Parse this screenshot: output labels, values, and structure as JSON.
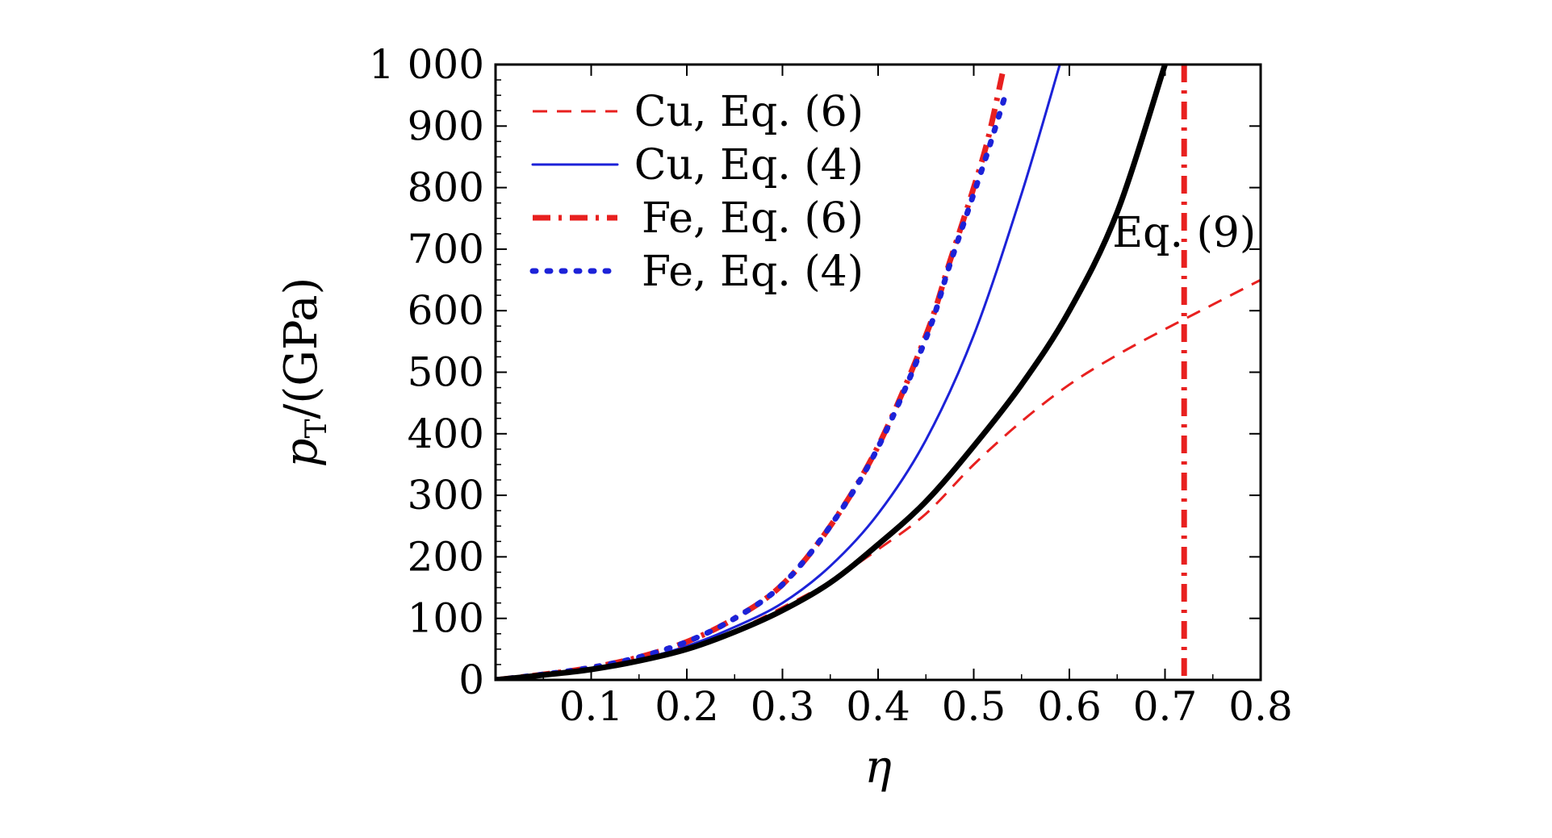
{
  "chart_data": {
    "type": "line",
    "xlabel": "η",
    "ylabel": "pT/(GPa)",
    "ylabel_parts": {
      "symbol": "p",
      "subscript": "T",
      "rest": "/(GPa)"
    },
    "xlim": [
      0,
      0.8
    ],
    "ylim": [
      0,
      1000
    ],
    "x_ticks": [
      0.1,
      0.2,
      0.3,
      0.4,
      0.5,
      0.6,
      0.7,
      0.8
    ],
    "x_tick_labels": [
      "0.1",
      "0.2",
      "0.3",
      "0.4",
      "0.5",
      "0.6",
      "0.7",
      "0.8"
    ],
    "y_ticks": [
      0,
      100,
      200,
      300,
      400,
      500,
      600,
      700,
      800,
      900,
      1000
    ],
    "y_tick_labels": [
      "0",
      "100",
      "200",
      "300",
      "400",
      "500",
      "600",
      "700",
      "800",
      "900",
      "1 000"
    ],
    "grid": false,
    "legend_position": "top-left",
    "series": [
      {
        "name": "Cu, Eq. (6)",
        "color": "#e8201f",
        "style": "dashed",
        "x": [
          0,
          0.05,
          0.1,
          0.15,
          0.2,
          0.25,
          0.3,
          0.35,
          0.4,
          0.45,
          0.5,
          0.55,
          0.6,
          0.65,
          0.7,
          0.75,
          0.8
        ],
        "y": [
          0,
          8,
          18,
          32,
          52,
          80,
          118,
          160,
          212,
          270,
          350,
          420,
          480,
          528,
          570,
          610,
          650
        ]
      },
      {
        "name": "Cu, Eq. (4)",
        "color": "#1c22d8",
        "style": "solid",
        "x": [
          0,
          0.05,
          0.1,
          0.15,
          0.2,
          0.25,
          0.3,
          0.35,
          0.4,
          0.45,
          0.5,
          0.55,
          0.59
        ],
        "y": [
          0,
          8,
          18,
          33,
          55,
          86,
          125,
          185,
          270,
          390,
          560,
          790,
          1000
        ]
      },
      {
        "name": "Fe, Eq. (6)",
        "color": "#e8201f",
        "style": "dashdot",
        "x": [
          0,
          0.05,
          0.1,
          0.15,
          0.2,
          0.25,
          0.3,
          0.35,
          0.4,
          0.45,
          0.475,
          0.5,
          0.515,
          0.53
        ],
        "y": [
          0,
          9,
          20,
          37,
          62,
          100,
          155,
          250,
          380,
          560,
          680,
          800,
          880,
          985
        ]
      },
      {
        "name": "Fe, Eq. (4)",
        "color": "#1c22d8",
        "style": "dotted",
        "x": [
          0,
          0.05,
          0.1,
          0.15,
          0.2,
          0.25,
          0.3,
          0.35,
          0.4,
          0.45,
          0.475,
          0.5,
          0.515,
          0.535
        ],
        "y": [
          0,
          9,
          20,
          37,
          62,
          100,
          155,
          250,
          378,
          555,
          675,
          790,
          860,
          960
        ]
      },
      {
        "name": "",
        "color": "#000000",
        "style": "solid-thick",
        "x": [
          0,
          0.05,
          0.1,
          0.15,
          0.2,
          0.25,
          0.3,
          0.35,
          0.4,
          0.45,
          0.5,
          0.55,
          0.6,
          0.65,
          0.7
        ],
        "y": [
          0,
          8,
          17,
          31,
          50,
          78,
          113,
          158,
          220,
          290,
          380,
          480,
          600,
          760,
          1000
        ]
      }
    ],
    "vertical_lines": [
      {
        "x": 0.72,
        "color": "#e8201f",
        "style": "dashdot"
      }
    ],
    "annotations": [
      {
        "text": "Eq. (9)",
        "x": 0.72,
        "y": 700
      }
    ]
  }
}
